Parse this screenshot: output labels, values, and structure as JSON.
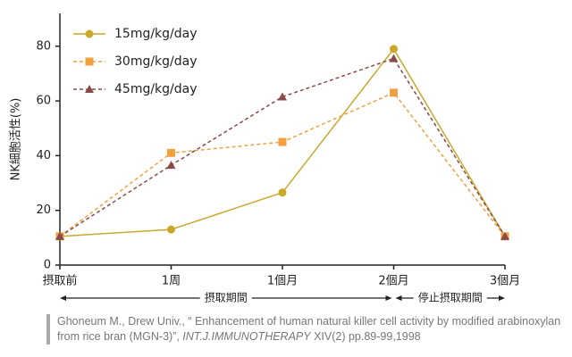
{
  "chart_data": {
    "type": "line",
    "y_label": "NK細胞活性(%)",
    "categories": [
      "摂取前",
      "1周",
      "1個月",
      "2個月",
      "3個月"
    ],
    "series": [
      {
        "name": "15mg/kg/day",
        "color": "#c9a82c",
        "dash": false,
        "marker": "circle",
        "values": [
          10.5,
          13,
          26.5,
          79,
          10.5
        ]
      },
      {
        "name": "30mg/kg/day",
        "color": "#f0a040",
        "dash": true,
        "marker": "square",
        "values": [
          10.5,
          41,
          45,
          63,
          10.5
        ]
      },
      {
        "name": "45mg/kg/day",
        "color": "#8b4a4a",
        "dash": true,
        "marker": "triangle",
        "values": [
          10.5,
          36.5,
          61.5,
          75.5,
          10.5
        ]
      }
    ],
    "ylim": [
      0,
      92
    ],
    "yticks": [
      0,
      20,
      40,
      60,
      80
    ],
    "periods": [
      "摂取期間",
      "停止摂取期間"
    ]
  },
  "citation": [
    "Ghoneum M., Drew Univ., “ Enhancement of human natural killer cell activity by modified arabinoxylan from rice bran (MGN-3)”, ",
    "INT.J.IMMUNOTHERAPY",
    " XIV(2) pp.89-99,1998"
  ]
}
